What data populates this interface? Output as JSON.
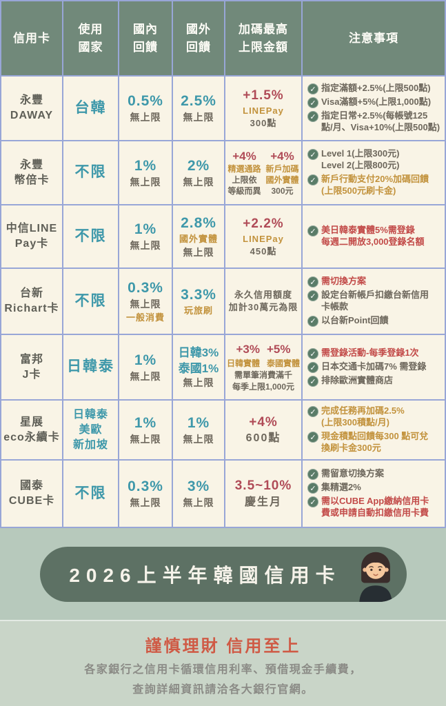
{
  "colors": {
    "header_bg": "#71897a",
    "cell_bg": "#f9f4e6",
    "grid_line": "#98a6d7",
    "teal": "#3e98aa",
    "maroon": "#b04b57",
    "gold": "#c2923c",
    "dark": "#6d675c",
    "note_red": "#c24a48",
    "check_green": "#5a7c68",
    "footer_bg": "#b7c9bc",
    "pill_bg": "#5d7164",
    "warning_red": "#cf5a45",
    "disclaimer_gray": "#8b8b86"
  },
  "table": {
    "columns": [
      "信用卡",
      "使用\n國家",
      "國內\n回饋",
      "國外\n回饋",
      "加碼最高\n上限金額",
      "注意事項"
    ],
    "rows": [
      {
        "card": [
          [
            {
              "t": "永豐",
              "cls": "name"
            }
          ],
          [
            {
              "t": "DAWAY",
              "cls": "name"
            }
          ]
        ],
        "country": [
          [
            {
              "t": "台韓",
              "cls": "country"
            }
          ]
        ],
        "domestic": [
          [
            {
              "t": "0.5%",
              "cls": "pct"
            }
          ],
          [
            {
              "t": "無上限",
              "cls": "sub"
            }
          ]
        ],
        "foreign": [
          [
            {
              "t": "2.5%",
              "cls": "pct"
            }
          ],
          [
            {
              "t": "無上限",
              "cls": "sub"
            }
          ]
        ],
        "bonus": [
          [
            {
              "t": "+1.5%",
              "cls": "red"
            }
          ],
          [
            {
              "t": "LINEPay",
              "cls": "gold"
            }
          ],
          [
            {
              "t": "300點",
              "cls": "dark"
            }
          ]
        ],
        "notes": [
          {
            "t": "指定滿額+2.5%(上限500點)",
            "color": "dark"
          },
          {
            "t": "Visa滿額+5%(上限1,000點)",
            "color": "dark"
          },
          {
            "t": "指定日常+2.5%(每帳號125\n點/月、Visa+10%(上限500點)",
            "color": "dark"
          }
        ]
      },
      {
        "card": [
          [
            {
              "t": "永豐",
              "cls": "name"
            }
          ],
          [
            {
              "t": "幣倍卡",
              "cls": "name"
            }
          ]
        ],
        "country": [
          [
            {
              "t": "不限",
              "cls": "country"
            }
          ]
        ],
        "domestic": [
          [
            {
              "t": "1%",
              "cls": "pct"
            }
          ],
          [
            {
              "t": "無上限",
              "cls": "sub"
            }
          ]
        ],
        "foreign": [
          [
            {
              "t": "2%",
              "cls": "pct"
            }
          ],
          [
            {
              "t": "無上限",
              "cls": "sub"
            }
          ]
        ],
        "bonus_cols": [
          [
            [
              {
                "t": "+4%",
                "cls": "red-sm"
              }
            ],
            [
              {
                "t": "精選通路",
                "cls": "gold-sm"
              }
            ],
            [
              {
                "t": "上限依",
                "cls": "sub-sm"
              }
            ],
            [
              {
                "t": "等級而異",
                "cls": "sub-sm"
              }
            ]
          ],
          [
            [
              {
                "t": "+4%",
                "cls": "red-sm"
              }
            ],
            [
              {
                "t": "新戶加碼",
                "cls": "gold-sm"
              }
            ],
            [
              {
                "t": "國外實體",
                "cls": "gold-sm"
              }
            ],
            [
              {
                "t": "300元",
                "cls": "sub-sm"
              }
            ]
          ]
        ],
        "notes": [
          {
            "t": "Level 1(上限300元)\nLevel 2(上限800元)",
            "color": "dark"
          },
          {
            "t": "新戶行動支付20%加碼回饋\n(上限500元刷卡金)",
            "color": "gold"
          }
        ]
      },
      {
        "card": [
          [
            {
              "t": "中信LINE",
              "cls": "name"
            }
          ],
          [
            {
              "t": "Pay卡",
              "cls": "name"
            }
          ]
        ],
        "country": [
          [
            {
              "t": "不限",
              "cls": "country"
            }
          ]
        ],
        "domestic": [
          [
            {
              "t": "1%",
              "cls": "pct"
            }
          ],
          [
            {
              "t": "無上限",
              "cls": "sub"
            }
          ]
        ],
        "foreign": [
          [
            {
              "t": "2.8%",
              "cls": "pct"
            }
          ],
          [
            {
              "t": "國外實體",
              "cls": "gold"
            }
          ],
          [
            {
              "t": "無上限",
              "cls": "sub"
            }
          ]
        ],
        "bonus": [
          [
            {
              "t": "+2.2%",
              "cls": "red"
            }
          ],
          [
            {
              "t": "LINEPay",
              "cls": "gold"
            }
          ],
          [
            {
              "t": "450點",
              "cls": "dark"
            }
          ]
        ],
        "notes": [
          {
            "t": "美日韓泰實體5%需登錄\n每週二開放3,000登錄名額",
            "color": "red"
          }
        ]
      },
      {
        "card": [
          [
            {
              "t": "台新",
              "cls": "name"
            }
          ],
          [
            {
              "t": "Richart卡",
              "cls": "name"
            }
          ]
        ],
        "country": [
          [
            {
              "t": "不限",
              "cls": "country"
            }
          ]
        ],
        "domestic": [
          [
            {
              "t": "0.3%",
              "cls": "pct"
            }
          ],
          [
            {
              "t": "無上限",
              "cls": "sub"
            }
          ],
          [
            {
              "t": "一般消費",
              "cls": "gold"
            }
          ]
        ],
        "foreign": [
          [
            {
              "t": "3.3%",
              "cls": "pct"
            }
          ],
          [
            {
              "t": "玩旅刷",
              "cls": "gold"
            }
          ]
        ],
        "bonus": [
          [
            {
              "t": "永久信用額度",
              "cls": "dark"
            }
          ],
          [
            {
              "t": "加計30萬元為限",
              "cls": "dark"
            }
          ]
        ],
        "notes": [
          {
            "t": "需切換方案",
            "color": "red"
          },
          {
            "t": "設定台新帳戶扣繳台新信用\n卡帳款",
            "color": "dark"
          },
          {
            "t": "以台新Point回饋",
            "color": "dark"
          }
        ]
      },
      {
        "card": [
          [
            {
              "t": "富邦",
              "cls": "name"
            }
          ],
          [
            {
              "t": "J卡",
              "cls": "name"
            }
          ]
        ],
        "country": [
          [
            {
              "t": "日韓泰",
              "cls": "country"
            }
          ]
        ],
        "domestic": [
          [
            {
              "t": "1%",
              "cls": "pct"
            }
          ],
          [
            {
              "t": "無上限",
              "cls": "sub"
            }
          ]
        ],
        "foreign": [
          [
            {
              "t": "日韓3%",
              "cls": "pct-sm"
            }
          ],
          [
            {
              "t": "泰國1%",
              "cls": "pct-sm"
            }
          ],
          [
            {
              "t": "無上限",
              "cls": "sub"
            }
          ]
        ],
        "bonus": [
          [
            {
              "t": "+3%",
              "cls": "red-sm"
            },
            {
              "t": "+5%",
              "cls": "red-sm"
            }
          ],
          [
            {
              "t": "日韓實體",
              "cls": "gold-sm"
            },
            {
              "t": "泰國實體",
              "cls": "gold-sm"
            }
          ],
          [
            {
              "t": "需單筆消費滿千",
              "cls": "sub-sm"
            }
          ],
          [
            {
              "t": "每季上限1,000元",
              "cls": "sub-sm"
            }
          ]
        ],
        "notes": [
          {
            "t": "需登錄活動-每季登錄1次",
            "color": "red"
          },
          {
            "t": "日本交通卡加碼7% 需登錄",
            "color": "dark"
          },
          {
            "t": "排除歐洲實體商店",
            "color": "dark"
          }
        ]
      },
      {
        "card": [
          [
            {
              "t": "星展",
              "cls": "name"
            }
          ],
          [
            {
              "t": "eco永續卡",
              "cls": "name"
            }
          ]
        ],
        "country": [
          [
            {
              "t": "日韓泰",
              "cls": "country-sm"
            }
          ],
          [
            {
              "t": "美歐",
              "cls": "country-sm"
            }
          ],
          [
            {
              "t": "新加坡",
              "cls": "country-sm"
            }
          ]
        ],
        "domestic": [
          [
            {
              "t": "1%",
              "cls": "pct"
            }
          ],
          [
            {
              "t": "無上限",
              "cls": "sub"
            }
          ]
        ],
        "foreign": [
          [
            {
              "t": "1%",
              "cls": "pct"
            }
          ],
          [
            {
              "t": "無上限",
              "cls": "sub"
            }
          ]
        ],
        "bonus": [
          [
            {
              "t": "+4%",
              "cls": "red"
            }
          ],
          [
            {
              "t": "600點",
              "cls": "dark-lg"
            }
          ]
        ],
        "notes": [
          {
            "t": "完成任務再加碼2.5%\n(上限300積點/月)",
            "color": "gold"
          },
          {
            "t": "現金積點回饋每300 點可兌\n換刷卡金300元",
            "color": "gold"
          }
        ]
      },
      {
        "card": [
          [
            {
              "t": "國泰",
              "cls": "name"
            }
          ],
          [
            {
              "t": "CUBE卡",
              "cls": "name"
            }
          ]
        ],
        "country": [
          [
            {
              "t": "不限",
              "cls": "country"
            }
          ]
        ],
        "domestic": [
          [
            {
              "t": "0.3%",
              "cls": "pct"
            }
          ],
          [
            {
              "t": "無上限",
              "cls": "sub"
            }
          ]
        ],
        "foreign": [
          [
            {
              "t": "3%",
              "cls": "pct"
            }
          ],
          [
            {
              "t": "無上限",
              "cls": "sub"
            }
          ]
        ],
        "bonus": [
          [
            {
              "t": "3.5~10%",
              "cls": "red"
            }
          ],
          [
            {
              "t": "慶生月",
              "cls": "dark-lg"
            }
          ]
        ],
        "notes": [
          {
            "t": "需留意切換方案",
            "color": "dark"
          },
          {
            "t": "集精選2%",
            "color": "dark"
          },
          {
            "t": "需以CUBE App繳納信用卡\n費或申請自動扣繳信用卡費",
            "color": "red"
          }
        ]
      }
    ]
  },
  "footer": {
    "banner_title": "2026上半年韓國信用卡",
    "warning": "謹慎理財 信用至上",
    "disclaimer_line1": "各家銀行之信用卡循環信用利率、預借現金手續費，",
    "disclaimer_line2": "查詢詳細資訊請洽各大銀行官網。"
  }
}
